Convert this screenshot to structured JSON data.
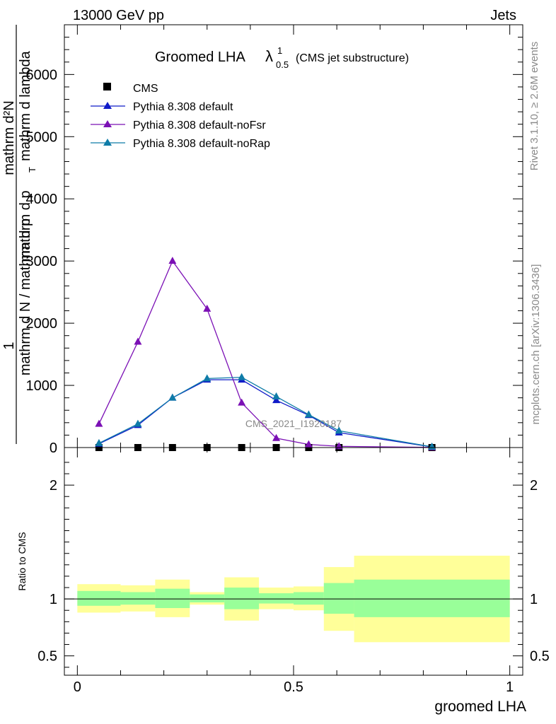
{
  "header": {
    "energy_label": "13000 GeV pp",
    "process_label": "Jets"
  },
  "side_text": {
    "rivet": "Rivet 3.1.10, ≥ 2.6M events",
    "mcplots": "mcplots.cern.ch [arXiv:1306.3436]"
  },
  "watermark": "CMS_2021_I1920187",
  "chart_data": [
    {
      "type": "line",
      "title_main": "Groomed LHA",
      "title_lambda": "λ",
      "title_sup": "1",
      "title_sub": "0.5",
      "title_suffix": "(CMS jet substructure)",
      "ylabel_parts": [
        "1",
        "mathrm d N / mathrm d p",
        "T",
        " mathrm d lambda",
        "mathrm d²N",
        "mathrm d p",
        "T",
        " mathrm d lambda"
      ],
      "xlim": [
        -0.03,
        1.03
      ],
      "ylim": [
        0,
        6800
      ],
      "yticks": [
        0,
        1000,
        2000,
        3000,
        4000,
        5000,
        6000
      ],
      "ytick_labels": [
        "0",
        "1000",
        "2000",
        "3000",
        "4000",
        "5000",
        "6000"
      ],
      "legend_position": "top-left",
      "series": [
        {
          "name": "CMS",
          "color": "#000000",
          "marker": "square",
          "x": [
            0.05,
            0.14,
            0.22,
            0.3,
            0.38,
            0.46,
            0.535,
            0.605,
            0.82
          ],
          "y": [
            0,
            0,
            0,
            0,
            0,
            0,
            0,
            0,
            0
          ]
        },
        {
          "name": "Pythia 8.308 default",
          "color": "#0f1bc8",
          "marker": "triangle",
          "x": [
            0.05,
            0.14,
            0.22,
            0.3,
            0.38,
            0.46,
            0.535,
            0.605,
            0.82
          ],
          "y": [
            60,
            360,
            800,
            1090,
            1090,
            760,
            520,
            240,
            10
          ]
        },
        {
          "name": "Pythia 8.308 default-noFsr",
          "color": "#7b10b5",
          "marker": "triangle",
          "x": [
            0.05,
            0.14,
            0.22,
            0.3,
            0.38,
            0.46,
            0.535,
            0.605,
            0.82
          ],
          "y": [
            380,
            1700,
            3000,
            2230,
            720,
            150,
            50,
            20,
            2
          ]
        },
        {
          "name": "Pythia 8.308 default-noRap",
          "color": "#0f7ca8",
          "marker": "triangle",
          "x": [
            0.05,
            0.14,
            0.22,
            0.3,
            0.38,
            0.46,
            0.535,
            0.605,
            0.82
          ],
          "y": [
            70,
            380,
            800,
            1110,
            1130,
            820,
            530,
            270,
            12
          ]
        }
      ]
    },
    {
      "type": "area",
      "ylabel": "Ratio to CMS",
      "xlabel": "groomed LHA",
      "xlim": [
        -0.03,
        1.03
      ],
      "ylim": [
        0.33,
        2.33
      ],
      "xticks": [
        0,
        0.5,
        1
      ],
      "xtick_labels": [
        "0",
        "0.5",
        "1"
      ],
      "yticks": [
        0.5,
        1,
        2
      ],
      "ytick_labels": [
        "0.5",
        "1",
        "2"
      ],
      "reference_line": 1,
      "bands": {
        "colors": {
          "inner": "#99ff99",
          "outer": "#ffff99"
        },
        "bins": [
          {
            "x0": 0.0,
            "x1": 0.1,
            "inner": [
              0.94,
              1.07
            ],
            "outer": [
              0.88,
              1.13
            ]
          },
          {
            "x0": 0.1,
            "x1": 0.18,
            "inner": [
              0.95,
              1.06
            ],
            "outer": [
              0.89,
              1.12
            ]
          },
          {
            "x0": 0.18,
            "x1": 0.26,
            "inner": [
              0.92,
              1.09
            ],
            "outer": [
              0.84,
              1.17
            ]
          },
          {
            "x0": 0.26,
            "x1": 0.34,
            "inner": [
              0.97,
              1.04
            ],
            "outer": [
              0.95,
              1.06
            ]
          },
          {
            "x0": 0.34,
            "x1": 0.42,
            "inner": [
              0.91,
              1.1
            ],
            "outer": [
              0.81,
              1.19
            ]
          },
          {
            "x0": 0.42,
            "x1": 0.5,
            "inner": [
              0.96,
              1.05
            ],
            "outer": [
              0.91,
              1.1
            ]
          },
          {
            "x0": 0.5,
            "x1": 0.57,
            "inner": [
              0.95,
              1.06
            ],
            "outer": [
              0.9,
              1.11
            ]
          },
          {
            "x0": 0.57,
            "x1": 0.64,
            "inner": [
              0.87,
              1.14
            ],
            "outer": [
              0.72,
              1.28
            ]
          },
          {
            "x0": 0.64,
            "x1": 1.0,
            "inner": [
              0.84,
              1.17
            ],
            "outer": [
              0.62,
              1.38
            ]
          }
        ]
      }
    }
  ]
}
